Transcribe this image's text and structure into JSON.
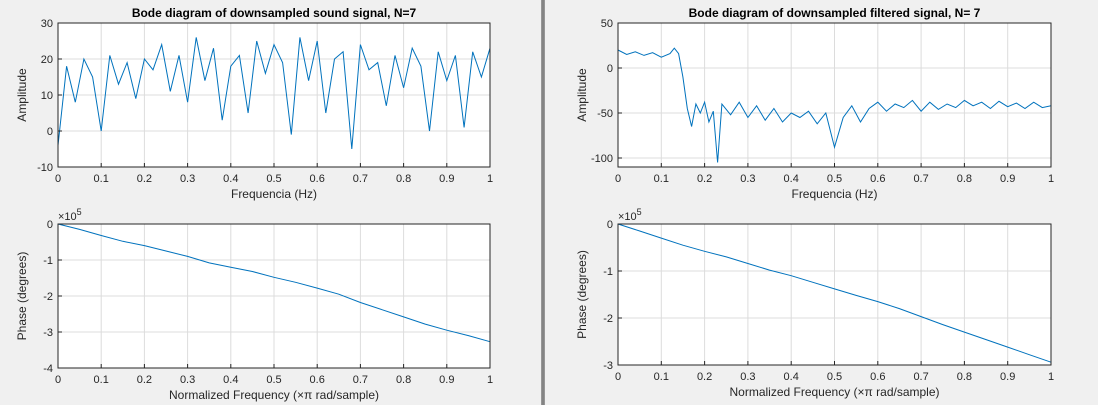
{
  "colors": {
    "series": "#0072bd",
    "background": "#f0f0f0",
    "axes_bg": "#ffffff"
  },
  "chart_data": [
    {
      "id": "left-magnitude",
      "type": "line",
      "title": "Bode diagram of downsampled sound signal, N=7",
      "xlabel": "Frequencia (Hz)",
      "ylabel": "Amplitude",
      "xlim": [
        0,
        1
      ],
      "ylim": [
        -10,
        30
      ],
      "xticks": [
        0,
        0.1,
        0.2,
        0.3,
        0.4,
        0.5,
        0.6,
        0.7,
        0.8,
        0.9,
        1
      ],
      "xticklabels": [
        "0",
        "0.1",
        "0.2",
        "0.3",
        "0.4",
        "0.5",
        "0.6",
        "0.7",
        "0.8",
        "0.9",
        "1"
      ],
      "yticks": [
        -10,
        0,
        10,
        20,
        30
      ],
      "yticklabels": [
        "-10",
        "0",
        "10",
        "20",
        "30"
      ],
      "exponent_label": "",
      "grid": true,
      "x": [
        0,
        0.02,
        0.04,
        0.06,
        0.08,
        0.1,
        0.12,
        0.14,
        0.16,
        0.18,
        0.2,
        0.22,
        0.24,
        0.26,
        0.28,
        0.3,
        0.32,
        0.34,
        0.36,
        0.38,
        0.4,
        0.42,
        0.44,
        0.46,
        0.48,
        0.5,
        0.52,
        0.54,
        0.56,
        0.58,
        0.6,
        0.62,
        0.64,
        0.66,
        0.68,
        0.7,
        0.72,
        0.74,
        0.76,
        0.78,
        0.8,
        0.82,
        0.84,
        0.86,
        0.88,
        0.9,
        0.92,
        0.94,
        0.96,
        0.98,
        1
      ],
      "y": [
        -4,
        18,
        8,
        20,
        15,
        0,
        21,
        13,
        19,
        9,
        20,
        17,
        24,
        11,
        21,
        8,
        26,
        14,
        23,
        3,
        18,
        21,
        5,
        25,
        16,
        24,
        19,
        -1,
        26,
        14,
        25,
        5,
        20,
        22,
        -5,
        24,
        17,
        19,
        7,
        21,
        12,
        23,
        18,
        0,
        22,
        14,
        21,
        1,
        22,
        15,
        23
      ]
    },
    {
      "id": "left-phase",
      "type": "line",
      "title": "",
      "xlabel": "Normalized Frequency  (×π rad/sample)",
      "ylabel": "Phase (degrees)",
      "xlim": [
        0,
        1
      ],
      "ylim": [
        -4,
        0
      ],
      "xticks": [
        0,
        0.1,
        0.2,
        0.3,
        0.4,
        0.5,
        0.6,
        0.7,
        0.8,
        0.9,
        1
      ],
      "xticklabels": [
        "0",
        "0.1",
        "0.2",
        "0.3",
        "0.4",
        "0.5",
        "0.6",
        "0.7",
        "0.8",
        "0.9",
        "1"
      ],
      "yticks": [
        -4,
        -3,
        -2,
        -1,
        0
      ],
      "yticklabels": [
        "-4",
        "-3",
        "-2",
        "-1",
        "0"
      ],
      "exponent_label": "×10",
      "exponent_power": "5",
      "grid": true,
      "x": [
        0,
        0.05,
        0.1,
        0.15,
        0.2,
        0.25,
        0.3,
        0.35,
        0.4,
        0.45,
        0.5,
        0.55,
        0.6,
        0.65,
        0.7,
        0.75,
        0.8,
        0.85,
        0.9,
        0.95,
        1
      ],
      "y": [
        0,
        -0.15,
        -0.32,
        -0.48,
        -0.6,
        -0.75,
        -0.9,
        -1.08,
        -1.2,
        -1.32,
        -1.48,
        -1.62,
        -1.78,
        -1.95,
        -2.18,
        -2.38,
        -2.58,
        -2.78,
        -2.95,
        -3.1,
        -3.27
      ]
    },
    {
      "id": "right-magnitude",
      "type": "line",
      "title": "Bode diagram of downsampled filtered signal, N= 7",
      "xlabel": "Frequencia (Hz)",
      "ylabel": "Amplitude",
      "xlim": [
        0,
        1
      ],
      "ylim": [
        -110,
        50
      ],
      "xticks": [
        0,
        0.1,
        0.2,
        0.3,
        0.4,
        0.5,
        0.6,
        0.7,
        0.8,
        0.9,
        1
      ],
      "xticklabels": [
        "0",
        "0.1",
        "0.2",
        "0.3",
        "0.4",
        "0.5",
        "0.6",
        "0.7",
        "0.8",
        "0.9",
        "1"
      ],
      "yticks": [
        -100,
        -50,
        0,
        50
      ],
      "yticklabels": [
        "-100",
        "-50",
        "0",
        "50"
      ],
      "exponent_label": "",
      "grid": true,
      "x": [
        0,
        0.02,
        0.04,
        0.06,
        0.08,
        0.1,
        0.12,
        0.13,
        0.14,
        0.15,
        0.16,
        0.17,
        0.18,
        0.19,
        0.2,
        0.21,
        0.22,
        0.23,
        0.24,
        0.26,
        0.28,
        0.3,
        0.32,
        0.34,
        0.36,
        0.38,
        0.4,
        0.42,
        0.44,
        0.46,
        0.48,
        0.5,
        0.52,
        0.54,
        0.56,
        0.58,
        0.6,
        0.62,
        0.64,
        0.66,
        0.68,
        0.7,
        0.72,
        0.74,
        0.76,
        0.78,
        0.8,
        0.82,
        0.84,
        0.86,
        0.88,
        0.9,
        0.92,
        0.94,
        0.96,
        0.98,
        1
      ],
      "y": [
        20,
        15,
        18,
        14,
        17,
        12,
        16,
        22,
        16,
        -10,
        -45,
        -65,
        -40,
        -50,
        -38,
        -60,
        -48,
        -105,
        -40,
        -52,
        -38,
        -55,
        -42,
        -58,
        -45,
        -60,
        -50,
        -55,
        -48,
        -62,
        -50,
        -88,
        -55,
        -42,
        -60,
        -45,
        -38,
        -48,
        -40,
        -44,
        -36,
        -48,
        -38,
        -46,
        -40,
        -44,
        -36,
        -42,
        -38,
        -45,
        -37,
        -43,
        -39,
        -45,
        -38,
        -44,
        -42
      ]
    },
    {
      "id": "right-phase",
      "type": "line",
      "title": "",
      "xlabel": "Normalized Frequency  (×π rad/sample)",
      "ylabel": "Phase (degrees)",
      "xlim": [
        0,
        1
      ],
      "ylim": [
        -3,
        0
      ],
      "xticks": [
        0,
        0.1,
        0.2,
        0.3,
        0.4,
        0.5,
        0.6,
        0.7,
        0.8,
        0.9,
        1
      ],
      "xticklabels": [
        "0",
        "0.1",
        "0.2",
        "0.3",
        "0.4",
        "0.5",
        "0.6",
        "0.7",
        "0.8",
        "0.9",
        "1"
      ],
      "yticks": [
        -3,
        -2,
        -1,
        0
      ],
      "yticklabels": [
        "-3",
        "-2",
        "-1",
        "0"
      ],
      "exponent_label": "×10",
      "exponent_power": "5",
      "grid": true,
      "x": [
        0,
        0.05,
        0.1,
        0.15,
        0.2,
        0.25,
        0.3,
        0.35,
        0.4,
        0.45,
        0.5,
        0.55,
        0.6,
        0.65,
        0.7,
        0.75,
        0.8,
        0.85,
        0.9,
        0.95,
        1
      ],
      "y": [
        0,
        -0.15,
        -0.3,
        -0.45,
        -0.58,
        -0.7,
        -0.84,
        -0.98,
        -1.1,
        -1.24,
        -1.38,
        -1.52,
        -1.65,
        -1.8,
        -1.97,
        -2.14,
        -2.3,
        -2.46,
        -2.62,
        -2.78,
        -2.94
      ]
    }
  ]
}
